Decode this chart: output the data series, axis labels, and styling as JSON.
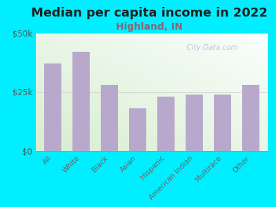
{
  "title": "Median per capita income in 2022",
  "subtitle": "Highland, IN",
  "categories": [
    "All",
    "White",
    "Black",
    "Asian",
    "Hispanic",
    "American Indian",
    "Multirace",
    "Other"
  ],
  "values": [
    37000,
    42000,
    28000,
    18000,
    23000,
    24000,
    24000,
    28000
  ],
  "bar_color": "#b8a9cc",
  "background_outer": "#00eeff",
  "ylim": [
    0,
    50000
  ],
  "ytick_labels": [
    "$0",
    "$25k",
    "$50k"
  ],
  "title_fontsize": 13,
  "title_color": "#222222",
  "subtitle_fontsize": 10,
  "subtitle_color": "#886677",
  "watermark": "  City-Data.com",
  "watermark_color": "#aabbcc"
}
